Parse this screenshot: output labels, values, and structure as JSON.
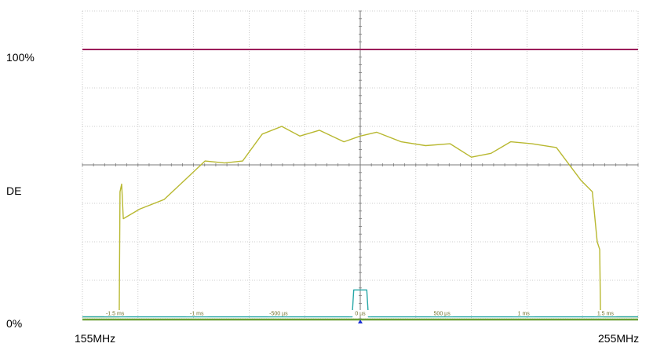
{
  "chart_data": {
    "type": "line",
    "title": "",
    "y_labels": {
      "top": "100%",
      "middle": "DE",
      "bottom": "0%"
    },
    "x_labels": {
      "left": "155MHz",
      "right": "255MHz"
    },
    "time_axis": {
      "unit": "s",
      "range": [
        -0.0017,
        0.0017
      ],
      "tick_labels": [
        "-1.5 ms",
        "-1 ms",
        "-500 µs",
        "0 µs",
        "500 µs",
        "1 ms",
        "1.5 ms"
      ],
      "tick_values": [
        -0.0015,
        -0.001,
        -0.0005,
        0,
        0.0005,
        0.001,
        0.0015
      ]
    },
    "grid": {
      "on": true,
      "divisions_x": 10,
      "divisions_y": 8,
      "style": "dotted"
    },
    "ylim": [
      0,
      8
    ],
    "series": [
      {
        "color": "#9b1c5a",
        "x": [
          -0.0017,
          0.0017
        ],
        "y": [
          7.0,
          7.0
        ]
      },
      {
        "color": "#b8b830",
        "x": [
          -0.0017,
          -0.00149,
          -0.001475,
          -0.00147,
          -0.00146,
          -0.00145,
          -0.00135,
          -0.0012,
          -0.00105,
          -0.00095,
          -0.00083,
          -0.00072,
          -0.0006,
          -0.00048,
          -0.00037,
          -0.00025,
          -0.0001,
          0.0,
          0.0001,
          0.00025,
          0.0004,
          0.00055,
          0.00068,
          0.0008,
          0.00092,
          0.00105,
          0.0012,
          0.00135,
          0.00142,
          0.00145,
          0.001465,
          0.00147,
          0.00149,
          0.0017
        ],
        "y": [
          0.05,
          0.05,
          0.05,
          3.3,
          3.5,
          2.6,
          2.85,
          3.1,
          3.7,
          4.1,
          4.05,
          4.1,
          4.8,
          5.0,
          4.75,
          4.9,
          4.6,
          4.75,
          4.85,
          4.6,
          4.5,
          4.55,
          4.2,
          4.3,
          4.6,
          4.55,
          4.45,
          3.6,
          3.3,
          2.0,
          1.8,
          0.1,
          0.05,
          0.05
        ]
      },
      {
        "color": "#28a8a8",
        "x": [
          -0.0017,
          -5e-05,
          -4e-05,
          4e-05,
          5e-05,
          0.0017
        ],
        "y": [
          0.05,
          0.05,
          0.75,
          0.75,
          0.05,
          0.05
        ]
      }
    ],
    "baseline": {
      "color": "#6aa036",
      "y": 0.0
    },
    "trigger_marker": {
      "color": "#1a2fd6",
      "x": 0.0
    }
  }
}
